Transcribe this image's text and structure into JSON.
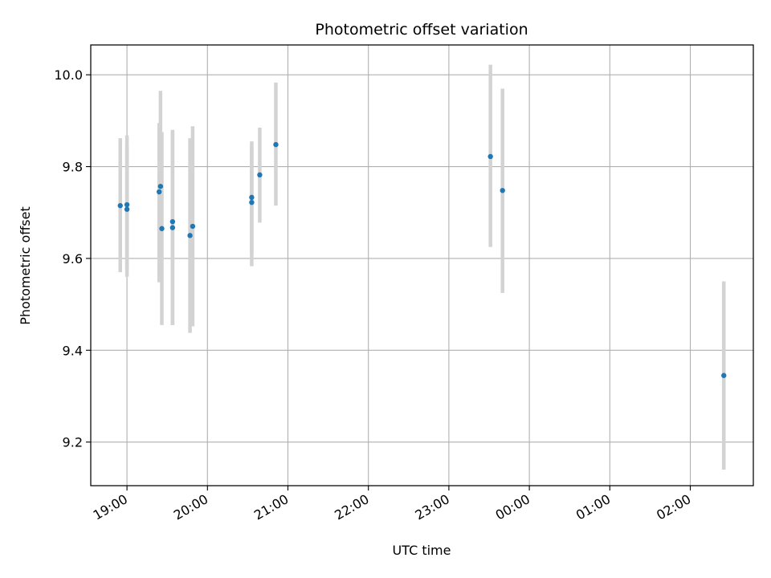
{
  "chart_data": {
    "type": "scatter",
    "title": "Photometric offset variation",
    "xlabel": "UTC time",
    "ylabel": "Photometric offset",
    "x_unit": "UTC time (h:mm, starting evening)",
    "x_ticks": [
      "19:00",
      "20:00",
      "21:00",
      "22:00",
      "23:00",
      "00:00",
      "01:00",
      "02:00"
    ],
    "y_ticks": [
      "9.2",
      "9.4",
      "9.6",
      "9.8",
      "10.0"
    ],
    "xlim": [
      "18:33",
      "02:47"
    ],
    "ylim": [
      9.105,
      10.065
    ],
    "grid": true,
    "colors": {
      "point": "#1f77b4",
      "errorbar": "#d3d3d3",
      "grid": "#b0b0b0"
    },
    "points": [
      {
        "x": "18:55",
        "y": 9.715,
        "err_low": 9.57,
        "err_high": 9.862
      },
      {
        "x": "19:00",
        "y": 9.717,
        "err_low": 9.56,
        "err_high": 9.868
      },
      {
        "x": "19:00",
        "y": 9.707,
        "err_low": 9.575,
        "err_high": 9.845
      },
      {
        "x": "19:24",
        "y": 9.745,
        "err_low": 9.548,
        "err_high": 9.895
      },
      {
        "x": "19:25",
        "y": 9.757,
        "err_low": 9.55,
        "err_high": 9.965
      },
      {
        "x": "19:26",
        "y": 9.665,
        "err_low": 9.455,
        "err_high": 9.875
      },
      {
        "x": "19:34",
        "y": 9.68,
        "err_low": 9.455,
        "err_high": 9.88
      },
      {
        "x": "19:34",
        "y": 9.667,
        "err_low": 9.455,
        "err_high": 9.875
      },
      {
        "x": "19:47",
        "y": 9.65,
        "err_low": 9.438,
        "err_high": 9.862
      },
      {
        "x": "19:49",
        "y": 9.67,
        "err_low": 9.452,
        "err_high": 9.888
      },
      {
        "x": "20:33",
        "y": 9.733,
        "err_low": 9.61,
        "err_high": 9.855
      },
      {
        "x": "20:33",
        "y": 9.722,
        "err_low": 9.583,
        "err_high": 9.845
      },
      {
        "x": "20:39",
        "y": 9.782,
        "err_low": 9.678,
        "err_high": 9.885
      },
      {
        "x": "20:51",
        "y": 9.848,
        "err_low": 9.715,
        "err_high": 9.983
      },
      {
        "x": "23:31",
        "y": 9.822,
        "err_low": 9.625,
        "err_high": 10.022
      },
      {
        "x": "23:40",
        "y": 9.748,
        "err_low": 9.525,
        "err_high": 9.97
      },
      {
        "x": "02:25",
        "y": 9.345,
        "err_low": 9.14,
        "err_high": 9.55
      }
    ]
  }
}
